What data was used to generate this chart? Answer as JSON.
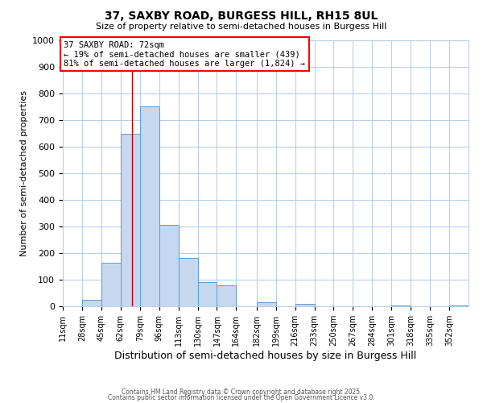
{
  "title": "37, SAXBY ROAD, BURGESS HILL, RH15 8UL",
  "subtitle": "Size of property relative to semi-detached houses in Burgess Hill",
  "xlabel": "Distribution of semi-detached houses by size in Burgess Hill",
  "ylabel": "Number of semi-detached properties",
  "bin_labels": [
    "11sqm",
    "28sqm",
    "45sqm",
    "62sqm",
    "79sqm",
    "96sqm",
    "113sqm",
    "130sqm",
    "147sqm",
    "164sqm",
    "182sqm",
    "199sqm",
    "216sqm",
    "233sqm",
    "250sqm",
    "267sqm",
    "284sqm",
    "301sqm",
    "318sqm",
    "335sqm",
    "352sqm"
  ],
  "bin_edges": [
    11,
    28,
    45,
    62,
    79,
    96,
    113,
    130,
    147,
    164,
    182,
    199,
    216,
    233,
    250,
    267,
    284,
    301,
    318,
    335,
    352
  ],
  "bar_heights": [
    0,
    25,
    163,
    648,
    752,
    307,
    182,
    92,
    80,
    0,
    14,
    0,
    10,
    0,
    0,
    0,
    0,
    3,
    0,
    0,
    3
  ],
  "bar_color": "#c5d8f0",
  "bar_edge_color": "#5b9bd5",
  "property_size": 72,
  "annotation_title": "37 SAXBY ROAD: 72sqm",
  "annotation_line1": "← 19% of semi-detached houses are smaller (439)",
  "annotation_line2": "81% of semi-detached houses are larger (1,824) →",
  "vline_x": 72,
  "vline_color": "#cc0000",
  "ylim": [
    0,
    1000
  ],
  "yticks": [
    0,
    100,
    200,
    300,
    400,
    500,
    600,
    700,
    800,
    900,
    1000
  ],
  "bg_color": "#ffffff",
  "grid_color": "#b8cfe8",
  "footer_line1": "Contains HM Land Registry data © Crown copyright and database right 2025.",
  "footer_line2": "Contains public sector information licensed under the Open Government Licence v3.0."
}
